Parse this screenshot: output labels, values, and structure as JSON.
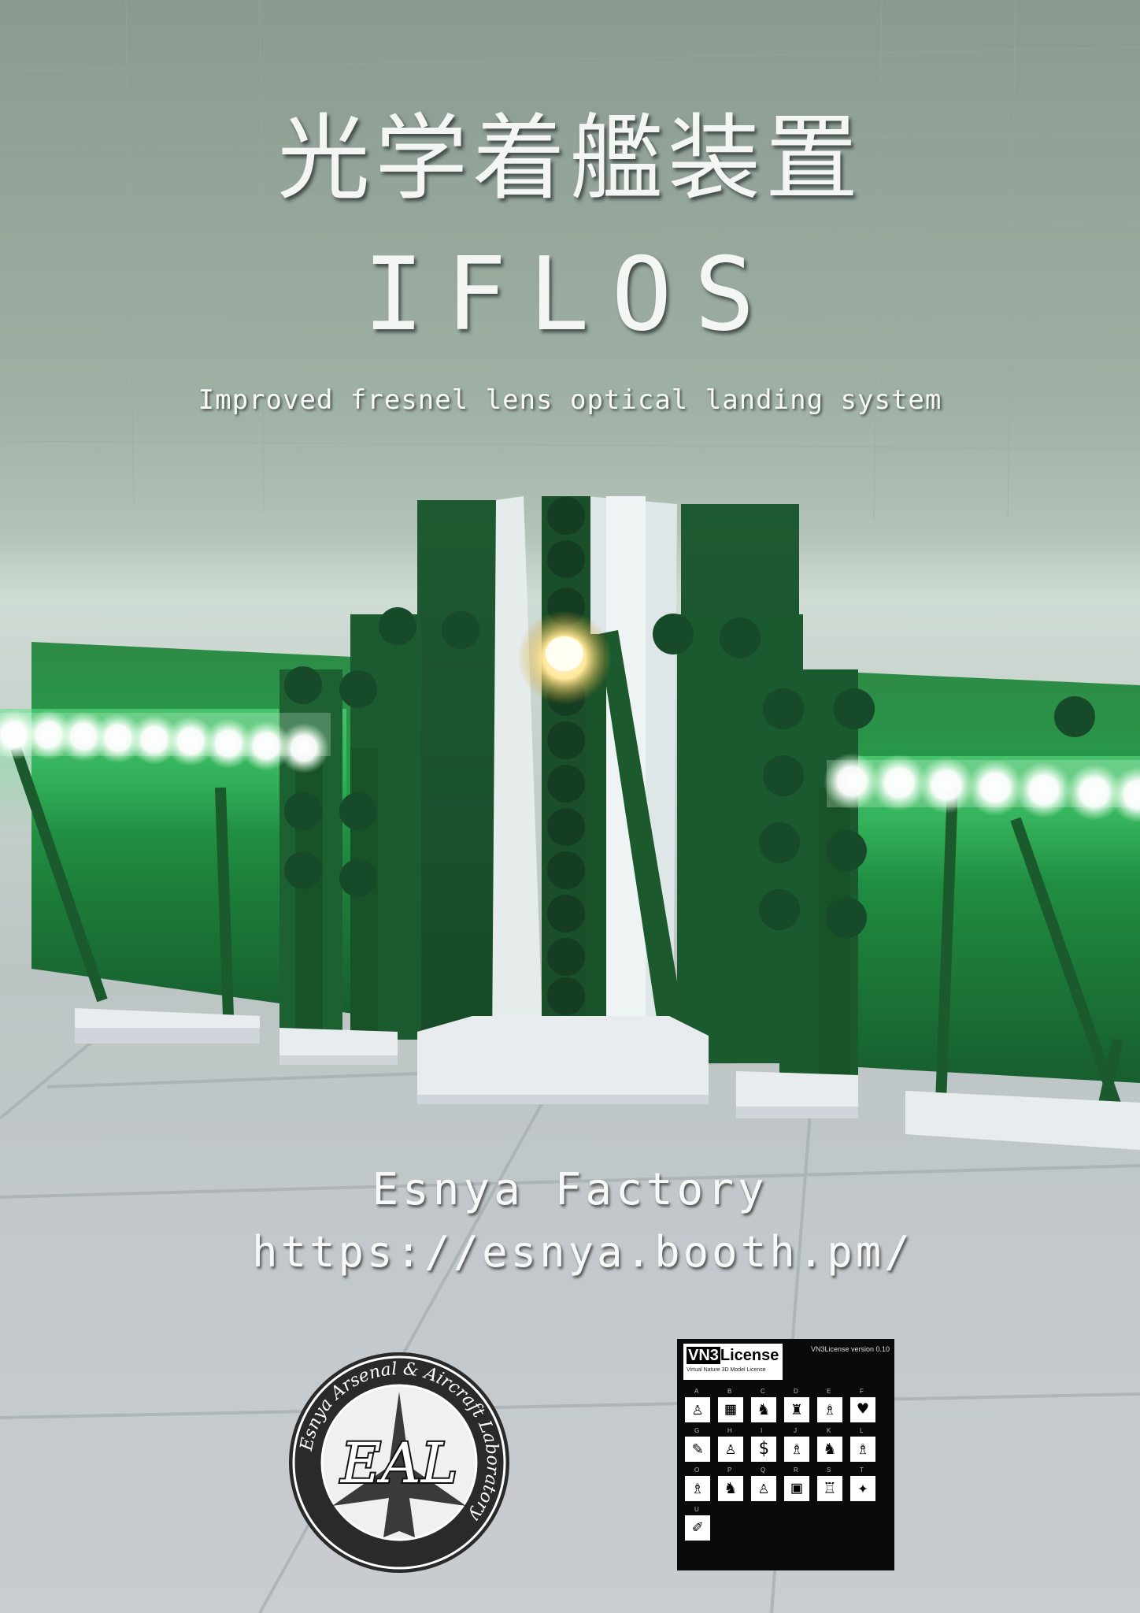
{
  "cover": {
    "title_jp": "光学着艦装置",
    "title_en": "IFLOS",
    "subtitle": "Improved fresnel lens optical landing system",
    "author": "Esnya Factory",
    "url": "https://esnya.booth.pm/"
  },
  "logo": {
    "ring_text": "Esnya Arsenal & Aircraft Laboratory",
    "monogram": "EAL"
  },
  "license": {
    "brand": "VN3",
    "brand_suffix": "License",
    "subtitle": "Virtual Nature 3D Model License",
    "version": "VN3License version 0.10",
    "rows": [
      {
        "letters": [
          "A",
          "B",
          "C",
          "D",
          "E",
          "F"
        ],
        "icons": [
          "person",
          "building",
          "cat",
          "chair",
          "figure",
          "heart"
        ]
      },
      {
        "letters": [
          "G",
          "H",
          "I",
          "J",
          "K",
          "L"
        ],
        "icons": [
          "pen",
          "person",
          "coin",
          "figure",
          "cat",
          "figure"
        ]
      },
      {
        "letters": [
          "O",
          "P",
          "Q",
          "R",
          "S",
          "T"
        ],
        "icons": [
          "figure",
          "cat",
          "person",
          "tv",
          "group",
          "star"
        ]
      },
      {
        "letters": [
          "U"
        ],
        "icons": [
          "brush"
        ]
      }
    ]
  },
  "colors": {
    "panel_green": "#1f6b35",
    "glow_green": "#3fd36a",
    "light_white": "#ffffff",
    "amber": "#ffd75a"
  }
}
